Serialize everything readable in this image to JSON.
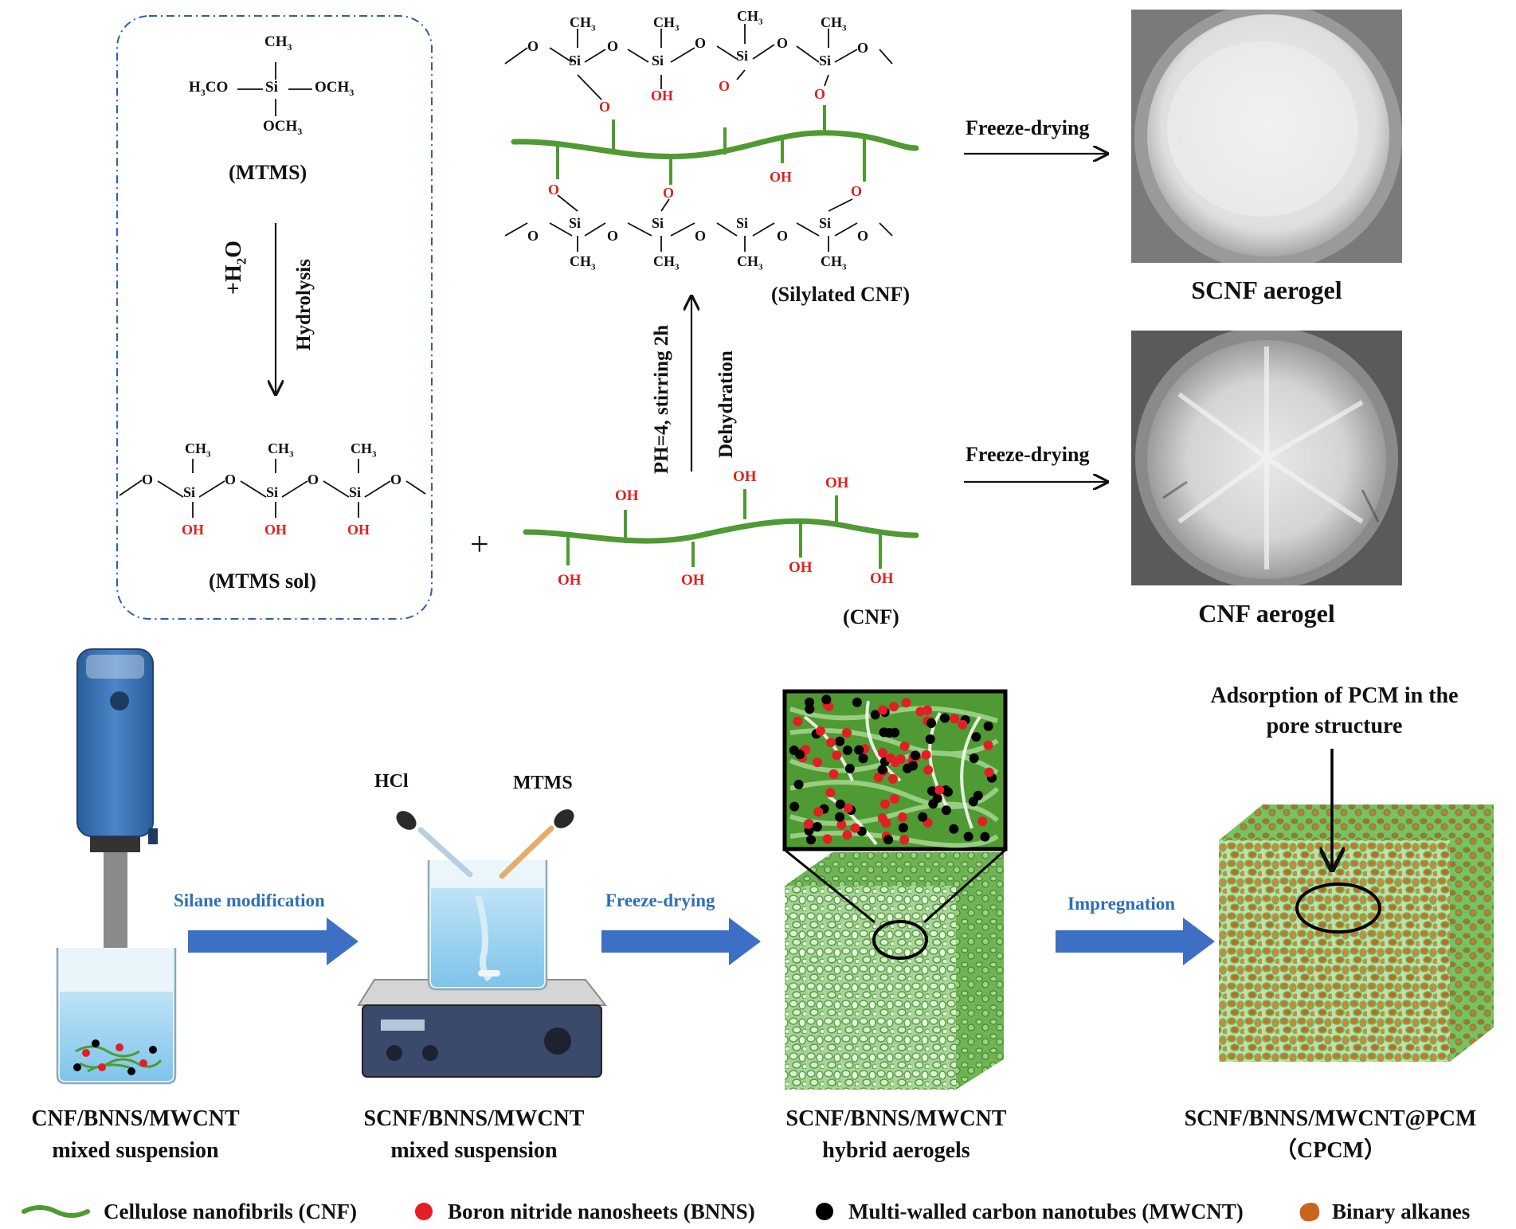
{
  "chem": {
    "ch3": "CH",
    "ch3_sub": "3",
    "h3co": "H",
    "h3co_sub": "3",
    "h3co_tail": "CO",
    "si": "Si",
    "o": "O",
    "oh": "OH",
    "och3": "OCH",
    "och3_sub": "3",
    "mtms_label": "(MTMS)",
    "h2o_plus": "+H",
    "h2o_sub": "2",
    "h2o_tail": "O",
    "hydrolysis": "Hydrolysis",
    "mtms_sol_label": "(MTMS sol)",
    "plus": "+",
    "silylated_label": "(Silylated CNF)",
    "cnf_label": "(CNF)",
    "ph_condition": "PH=4, stirring 2h",
    "dehydration": "Dehydration",
    "freeze_drying_1": "Freeze-drying",
    "freeze_drying_2": "Freeze-drying",
    "scnf_aerogel": "SCNF aerogel",
    "cnf_aerogel": "CNF aerogel"
  },
  "process": {
    "hcl": "HCl",
    "mtms": "MTMS",
    "silane_modification": "Silane modification",
    "freeze_drying": "Freeze-drying",
    "impregnation": "Impregnation",
    "adsorption_line1": "Adsorption of PCM in the",
    "adsorption_line2": "pore structure",
    "step1_line1": "CNF/BNNS/MWCNT",
    "step1_line2": "mixed suspension",
    "step2_line1": "SCNF/BNNS/MWCNT",
    "step2_line2": "mixed suspension",
    "step3_line1": "SCNF/BNNS/MWCNT",
    "step3_line2": "hybrid aerogels",
    "step4_line1": "SCNF/BNNS/MWCNT@PCM",
    "step4_line2": "（CPCM）"
  },
  "legend": {
    "cnf": "Cellulose nanofibrils (CNF)",
    "bnns": "Boron nitride nanosheets (BNNS)",
    "mwcnt": "Multi-walled carbon nanotubes (MWCNT)",
    "alkanes": "Binary alkanes"
  },
  "colors": {
    "fiber_green": "#4f9a32",
    "oxygen_red": "#e0201c",
    "process_arrow_blue": "#3d6fc4",
    "label_blue": "#2f6fb6",
    "dash_border": "#2d5fa8",
    "bnns_red": "#e31e24",
    "mwcnt_black": "#000000",
    "alkane_orange": "#c8641e"
  }
}
